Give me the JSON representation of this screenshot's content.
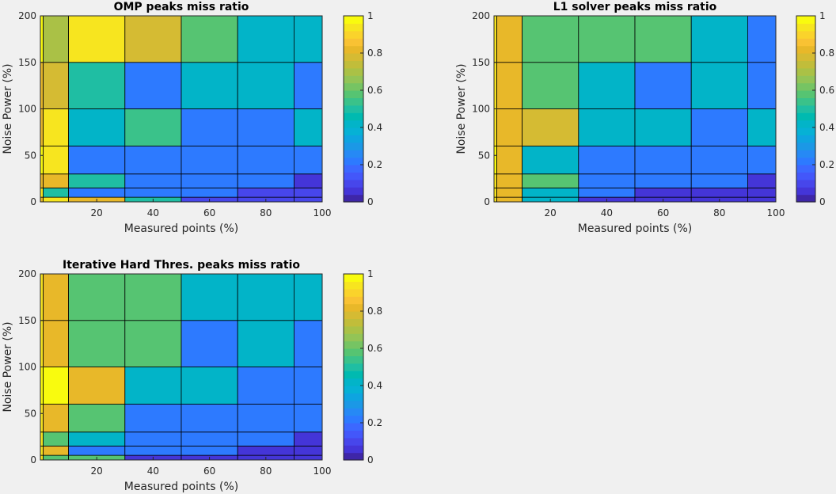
{
  "colormap": [
    "#3e26a8",
    "#4435d8",
    "#4746eb",
    "#4357fa",
    "#3c68ff",
    "#2d7aff",
    "#2689f5",
    "#1b98e6",
    "#0ea4e0",
    "#06b1d5",
    "#02b4c8",
    "#00bab0",
    "#1fbea3",
    "#3ac28a",
    "#56c472",
    "#76c463",
    "#93c456",
    "#aac146",
    "#c1bd3a",
    "#d5bb33",
    "#e8b829",
    "#f9c233",
    "#fad32b",
    "#f7e51f",
    "#f9fb0e"
  ],
  "figure_background": "#f0f0f0",
  "chart_data": [
    {
      "type": "heatmap",
      "title": "OMP peaks miss ratio",
      "xlabel": "Measured points (%)",
      "ylabel": "Noise Power (%)",
      "xlim": [
        0,
        100
      ],
      "ylim": [
        0,
        200
      ],
      "xticks": [
        20,
        40,
        60,
        80,
        100
      ],
      "yticks": [
        0,
        50,
        100,
        150,
        200
      ],
      "x_edges": [
        0,
        1,
        10,
        30,
        50,
        70,
        90,
        100
      ],
      "y_edges": [
        0,
        5,
        15,
        30,
        60,
        100,
        150,
        200
      ],
      "values": [
        [
          0.85,
          0.95,
          0.85,
          0.5,
          0.1,
          0.1,
          0.1
        ],
        [
          0.95,
          0.5,
          0.2,
          0.2,
          0.2,
          0.1,
          0.1
        ],
        [
          0.85,
          0.85,
          0.5,
          0.2,
          0.2,
          0.2,
          0.05
        ],
        [
          1.0,
          0.95,
          0.2,
          0.2,
          0.2,
          0.2,
          0.2
        ],
        [
          0.85,
          0.95,
          0.4,
          0.55,
          0.2,
          0.2,
          0.4
        ],
        [
          0.85,
          0.8,
          0.5,
          0.2,
          0.4,
          0.4,
          0.2
        ],
        [
          1.0,
          0.7,
          0.95,
          0.8,
          0.6,
          0.4,
          0.4
        ]
      ],
      "colorbar": {
        "min": 0,
        "max": 1,
        "ticks": [
          "0",
          "0.2",
          "0.4",
          "0.6",
          "0.8",
          "1"
        ]
      }
    },
    {
      "type": "heatmap",
      "title": "L1 solver peaks miss ratio",
      "xlabel": "Measured points (%)",
      "ylabel": "Noise Power (%)",
      "xlim": [
        0,
        100
      ],
      "ylim": [
        0,
        200
      ],
      "xticks": [
        20,
        40,
        60,
        80,
        100
      ],
      "yticks": [
        0,
        50,
        100,
        150,
        200
      ],
      "x_edges": [
        0,
        1,
        10,
        30,
        50,
        70,
        90,
        100
      ],
      "y_edges": [
        0,
        5,
        15,
        30,
        60,
        100,
        150,
        200
      ],
      "values": [
        [
          0.95,
          0.85,
          0.4,
          0.05,
          0.05,
          0.05,
          0.05
        ],
        [
          0.95,
          0.85,
          0.4,
          0.2,
          0.05,
          0.05,
          0.05
        ],
        [
          0.95,
          0.85,
          0.6,
          0.2,
          0.2,
          0.2,
          0.05
        ],
        [
          1.0,
          0.85,
          0.4,
          0.2,
          0.2,
          0.2,
          0.2
        ],
        [
          0.95,
          0.85,
          0.8,
          0.4,
          0.4,
          0.2,
          0.4
        ],
        [
          0.95,
          0.85,
          0.6,
          0.4,
          0.2,
          0.4,
          0.2
        ],
        [
          0.95,
          0.85,
          0.6,
          0.6,
          0.6,
          0.4,
          0.2
        ]
      ],
      "colorbar": {
        "min": 0,
        "max": 1,
        "ticks": [
          "0",
          "0.2",
          "0.4",
          "0.6",
          "0.8",
          "1"
        ]
      }
    },
    {
      "type": "heatmap",
      "title": "Iterative Hard Thres. peaks miss ratio",
      "xlabel": "Measured points (%)",
      "ylabel": "Noise Power (%)",
      "xlim": [
        0,
        100
      ],
      "ylim": [
        0,
        200
      ],
      "xticks": [
        20,
        40,
        60,
        80,
        100
      ],
      "yticks": [
        0,
        50,
        100,
        150,
        200
      ],
      "x_edges": [
        0,
        1,
        10,
        30,
        50,
        70,
        90,
        100
      ],
      "y_edges": [
        0,
        5,
        15,
        30,
        60,
        100,
        150,
        200
      ],
      "values": [
        [
          0.95,
          0.6,
          0.6,
          0.05,
          0.05,
          0.05,
          0.05
        ],
        [
          0.95,
          0.85,
          0.2,
          0.2,
          0.2,
          0.05,
          0.05
        ],
        [
          0.95,
          0.6,
          0.4,
          0.2,
          0.2,
          0.2,
          0.05
        ],
        [
          0.95,
          0.85,
          0.6,
          0.2,
          0.2,
          0.2,
          0.2
        ],
        [
          1.0,
          1.0,
          0.85,
          0.4,
          0.4,
          0.2,
          0.2
        ],
        [
          0.95,
          0.85,
          0.6,
          0.6,
          0.2,
          0.4,
          0.2
        ],
        [
          0.95,
          0.85,
          0.6,
          0.6,
          0.4,
          0.4,
          0.4
        ]
      ],
      "colorbar": {
        "min": 0,
        "max": 1,
        "ticks": [
          "0",
          "0.2",
          "0.4",
          "0.6",
          "0.8",
          "1"
        ]
      }
    }
  ]
}
